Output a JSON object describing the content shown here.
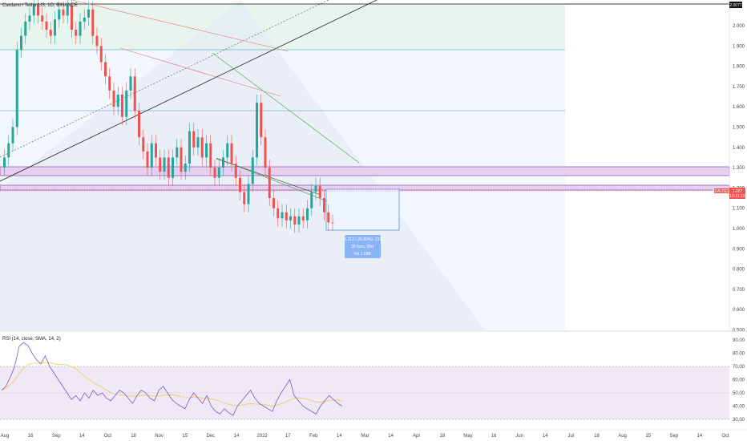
{
  "chart_data": {
    "type": "candlestick",
    "title": "Cardano / TetherUS, 1D, BINANCE",
    "symbol_tag": "ADAUSDT",
    "last_price": "1.027",
    "countdown": "10:21:19",
    "top_price_label": "2.0077",
    "price_axis": {
      "min": 0.5,
      "max": 2.0,
      "ticks": [
        "2.000",
        "1.900",
        "1.800",
        "1.700",
        "1.600",
        "1.500",
        "1.400",
        "1.300",
        "1.200",
        "1.100",
        "1.000",
        "0.900",
        "0.800",
        "0.700",
        "0.600",
        "0.500"
      ]
    },
    "time_axis": {
      "ticks": [
        "Aug",
        "16",
        "Sep",
        "14",
        "Oct",
        "18",
        "Nov",
        "15",
        "Dec",
        "14",
        "2022",
        "17",
        "Feb",
        "14",
        "Mar",
        "14",
        "Apr",
        "18",
        "May",
        "16",
        "Jun",
        "14",
        "Jul",
        "18",
        "Aug",
        "15",
        "Sep",
        "14",
        "Oct"
      ]
    },
    "candles": [
      [
        1.3,
        1.35
      ],
      [
        1.35,
        1.42
      ],
      [
        1.42,
        1.5
      ],
      [
        1.5,
        1.88
      ],
      [
        1.88,
        1.95
      ],
      [
        1.95,
        2.02
      ],
      [
        2.02,
        2.05
      ],
      [
        2.05,
        2.1
      ],
      [
        2.1,
        2.05
      ],
      [
        2.05,
        2.02
      ],
      [
        2.02,
        1.98
      ],
      [
        1.98,
        1.95
      ],
      [
        1.95,
        2.03
      ],
      [
        2.03,
        2.08
      ],
      [
        2.08,
        2.05
      ],
      [
        2.05,
        2.1
      ],
      [
        2.1,
        1.98
      ],
      [
        1.98,
        1.95
      ],
      [
        1.95,
        2.02
      ],
      [
        2.02,
        2.04
      ],
      [
        2.04,
        2.08
      ],
      [
        2.08,
        1.95
      ],
      [
        1.95,
        1.9
      ],
      [
        1.9,
        1.82
      ],
      [
        1.82,
        1.75
      ],
      [
        1.75,
        1.68
      ],
      [
        1.68,
        1.6
      ],
      [
        1.6,
        1.66
      ],
      [
        1.66,
        1.55
      ],
      [
        1.55,
        1.68
      ],
      [
        1.68,
        1.75
      ],
      [
        1.75,
        1.58
      ],
      [
        1.58,
        1.45
      ],
      [
        1.45,
        1.38
      ],
      [
        1.38,
        1.3
      ],
      [
        1.3,
        1.42
      ],
      [
        1.42,
        1.35
      ],
      [
        1.35,
        1.28
      ],
      [
        1.28,
        1.35
      ],
      [
        1.35,
        1.25
      ],
      [
        1.25,
        1.35
      ],
      [
        1.35,
        1.4
      ],
      [
        1.4,
        1.28
      ],
      [
        1.28,
        1.32
      ],
      [
        1.32,
        1.48
      ],
      [
        1.48,
        1.4
      ],
      [
        1.4,
        1.45
      ],
      [
        1.45,
        1.35
      ],
      [
        1.35,
        1.42
      ],
      [
        1.42,
        1.3
      ],
      [
        1.3,
        1.25
      ],
      [
        1.25,
        1.3
      ],
      [
        1.3,
        1.35
      ],
      [
        1.35,
        1.42
      ],
      [
        1.42,
        1.32
      ],
      [
        1.32,
        1.25
      ],
      [
        1.25,
        1.18
      ],
      [
        1.18,
        1.12
      ],
      [
        1.12,
        1.22
      ],
      [
        1.22,
        1.35
      ],
      [
        1.35,
        1.62
      ],
      [
        1.62,
        1.45
      ],
      [
        1.45,
        1.3
      ],
      [
        1.3,
        1.15
      ],
      [
        1.15,
        1.1
      ],
      [
        1.1,
        1.05
      ],
      [
        1.05,
        1.08
      ],
      [
        1.08,
        1.04
      ],
      [
        1.04,
        1.06
      ],
      [
        1.06,
        1.02
      ],
      [
        1.02,
        1.06
      ],
      [
        1.06,
        1.04
      ],
      [
        1.04,
        1.1
      ],
      [
        1.1,
        1.18
      ],
      [
        1.18,
        1.21
      ],
      [
        1.21,
        1.15
      ],
      [
        1.15,
        1.08
      ],
      [
        1.08,
        1.03
      ],
      [
        1.03,
        1.027
      ]
    ],
    "measure_box_label": "-0.213 (-20.83%) -213",
    "measure_box_bars": "35 bars, 35d",
    "measure_box_vol": "Vol 1.28B",
    "rsi": {
      "title": "RSI (14, close, SMA, 14, 2)",
      "overbought": 70,
      "oversold": 30,
      "mid": 50,
      "ticks": [
        "90.00",
        "80.00",
        "70.00",
        "60.00",
        "50.00",
        "40.00",
        "30.00"
      ],
      "values": [
        52,
        55,
        62,
        70,
        85,
        88,
        86,
        80,
        75,
        72,
        78,
        70,
        65,
        60,
        55,
        50,
        45,
        48,
        44,
        50,
        46,
        52,
        48,
        50,
        46,
        44,
        48,
        52,
        50,
        46,
        42,
        48,
        52,
        50,
        46,
        44,
        52,
        55,
        50,
        45,
        42,
        40,
        38,
        45,
        50,
        46,
        42,
        48,
        40,
        36,
        34,
        38,
        35,
        33,
        40,
        44,
        48,
        52,
        46,
        42,
        40,
        38,
        36,
        44,
        50,
        55,
        60,
        48,
        44,
        40,
        38,
        36,
        34,
        40,
        44,
        48,
        45,
        42,
        40
      ]
    }
  }
}
